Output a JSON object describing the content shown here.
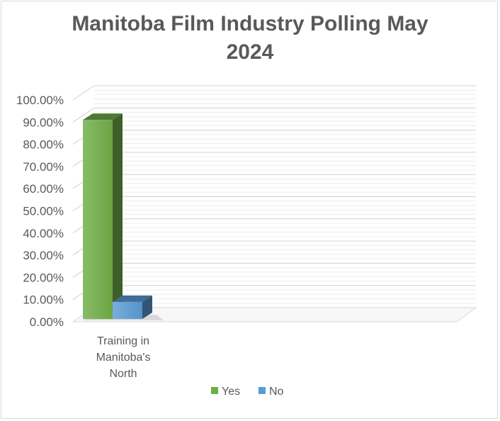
{
  "chart_data": {
    "type": "bar",
    "title_lines": [
      "Manitoba Film Industry Polling May",
      "2024"
    ],
    "categories": [
      "Training in Manitoba's North"
    ],
    "category_label_lines": [
      [
        "Training in",
        "Manitoba's",
        "North"
      ]
    ],
    "series": [
      {
        "name": "Yes",
        "values": [
          0.91
        ],
        "color": "#70ad47"
      },
      {
        "name": "No",
        "values": [
          0.09
        ],
        "color": "#5b9bd5"
      }
    ],
    "ylim": [
      0,
      1
    ],
    "yticks": [
      "0.00%",
      "10.00%",
      "20.00%",
      "30.00%",
      "40.00%",
      "50.00%",
      "60.00%",
      "70.00%",
      "80.00%",
      "90.00%",
      "100.00%"
    ],
    "grid": true,
    "three_d": true,
    "legend_position": "bottom"
  }
}
